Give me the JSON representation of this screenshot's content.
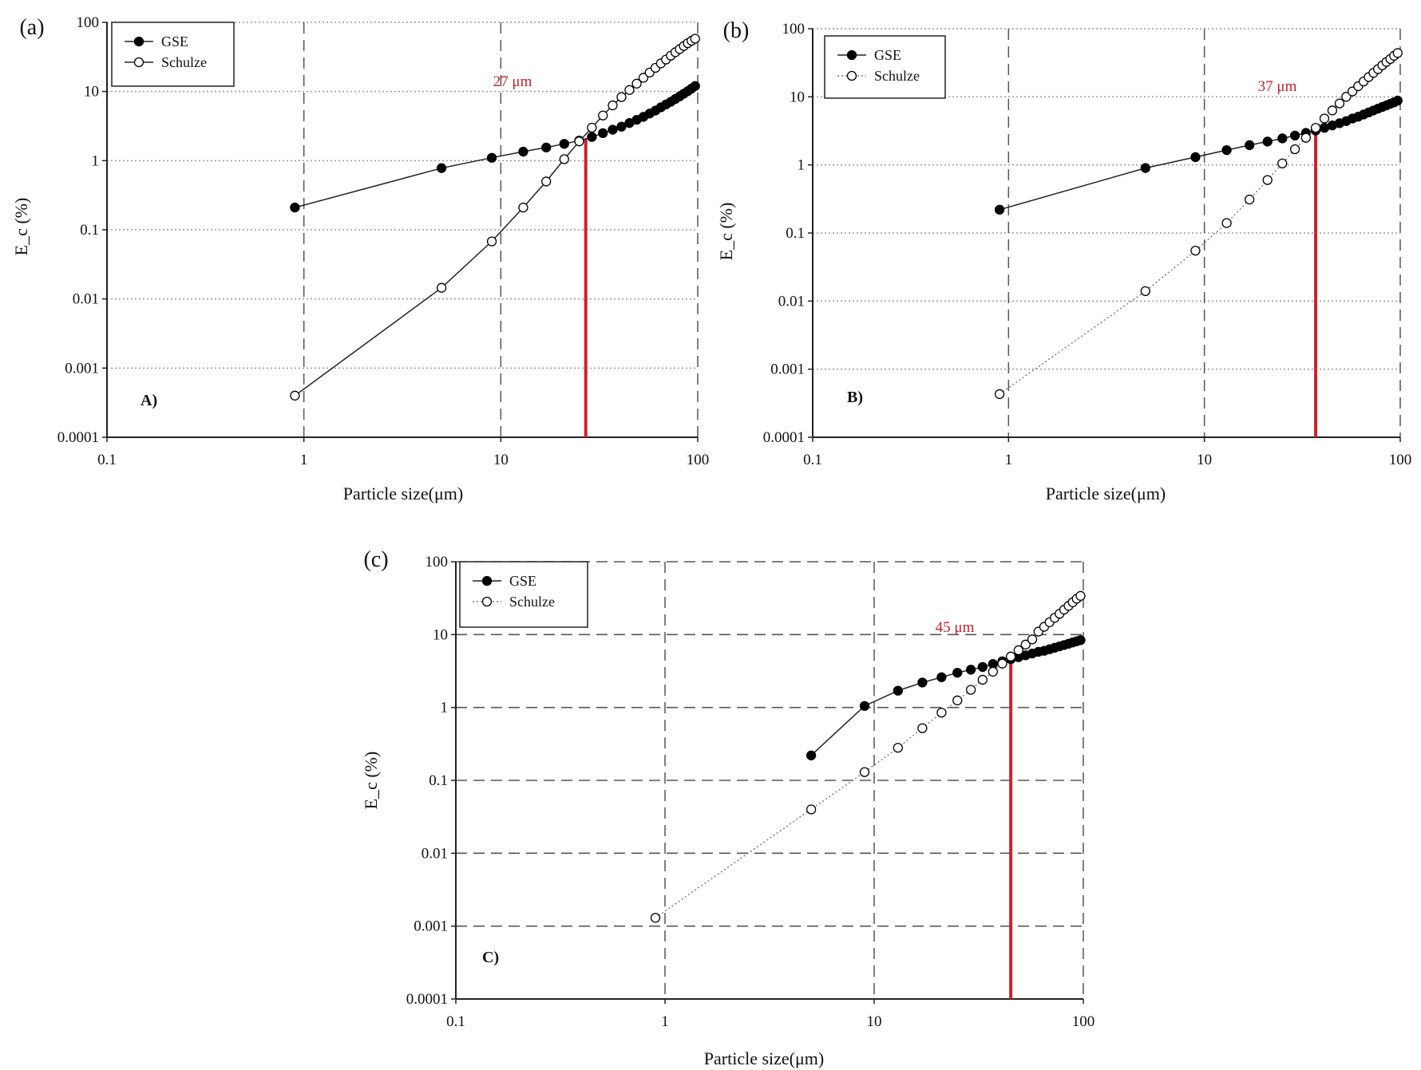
{
  "chart_data": [
    {
      "type": "line",
      "panel_label": "(a)",
      "inner_label": "A)",
      "xlabel": "Particle size(μm)",
      "ylabel": "E_c (%)",
      "xscale": "log",
      "yscale": "log",
      "xlim": [
        0.1,
        100
      ],
      "ylim": [
        0.0001,
        100
      ],
      "xticks": [
        "0.1",
        "1",
        "10",
        "100"
      ],
      "yticks": [
        "0.0001",
        "0.001",
        "0.01",
        "0.1",
        "1",
        "10",
        "100"
      ],
      "grid": {
        "horizontal": "dotted",
        "vertical": "dashed"
      },
      "legend": "top-left",
      "marker_line": {
        "x": 27,
        "label": "27 μm",
        "color": "#d0202a"
      },
      "series": [
        {
          "name": "GSE",
          "marker": "filled",
          "line": "solid",
          "x": [
            0.9,
            5,
            9,
            13,
            17,
            21,
            25,
            29,
            33,
            37,
            41,
            45,
            49,
            53,
            57,
            61,
            65,
            69,
            73,
            77,
            81,
            85,
            89,
            93,
            97
          ],
          "y": [
            0.21,
            0.78,
            1.1,
            1.35,
            1.55,
            1.75,
            1.95,
            2.2,
            2.5,
            2.8,
            3.1,
            3.5,
            3.9,
            4.3,
            4.8,
            5.3,
            5.9,
            6.5,
            7.1,
            7.8,
            8.5,
            9.3,
            10.1,
            11,
            12
          ]
        },
        {
          "name": "Schulze",
          "marker": "open",
          "line": "solid",
          "x": [
            0.9,
            5,
            9,
            13,
            17,
            21,
            25,
            29,
            33,
            37,
            41,
            45,
            49,
            53,
            57,
            61,
            65,
            69,
            73,
            77,
            81,
            85,
            89,
            93,
            97
          ],
          "y": [
            0.0004,
            0.0145,
            0.068,
            0.21,
            0.5,
            1.05,
            1.9,
            3,
            4.5,
            6.3,
            8.3,
            10.5,
            13,
            15.8,
            18.8,
            22,
            25.5,
            29,
            33,
            37,
            41,
            45.5,
            50,
            54,
            58
          ]
        }
      ]
    },
    {
      "type": "line",
      "panel_label": "(b)",
      "inner_label": "B)",
      "xlabel": "Particle size(μm)",
      "ylabel": "E_c (%)",
      "xscale": "log",
      "yscale": "log",
      "xlim": [
        0.1,
        100
      ],
      "ylim": [
        0.0001,
        100
      ],
      "xticks": [
        "0.1",
        "1",
        "10",
        "100"
      ],
      "yticks": [
        "0.0001",
        "0.001",
        "0.01",
        "0.1",
        "1",
        "10",
        "100"
      ],
      "grid": {
        "horizontal": "dotted",
        "vertical": "dashed"
      },
      "legend": "top-left",
      "marker_line": {
        "x": 37,
        "label": "37 μm",
        "color": "#d0202a"
      },
      "series": [
        {
          "name": "GSE",
          "marker": "filled",
          "line": "solid",
          "x": [
            0.9,
            5,
            9,
            13,
            17,
            21,
            25,
            29,
            33,
            37,
            41,
            45,
            49,
            53,
            57,
            61,
            65,
            69,
            73,
            77,
            81,
            85,
            89,
            93,
            97
          ],
          "y": [
            0.22,
            0.9,
            1.3,
            1.65,
            1.95,
            2.2,
            2.45,
            2.7,
            2.95,
            3.2,
            3.5,
            3.8,
            4.1,
            4.4,
            4.8,
            5.1,
            5.5,
            5.9,
            6.3,
            6.7,
            7.1,
            7.5,
            7.9,
            8.3,
            8.8
          ]
        },
        {
          "name": "Schulze",
          "marker": "open",
          "line": "dotted",
          "x": [
            0.9,
            5,
            9,
            13,
            17,
            21,
            25,
            29,
            33,
            37,
            41,
            45,
            49,
            53,
            57,
            61,
            65,
            69,
            73,
            77,
            81,
            85,
            89,
            93,
            97
          ],
          "y": [
            0.00043,
            0.014,
            0.055,
            0.14,
            0.31,
            0.6,
            1.05,
            1.7,
            2.5,
            3.5,
            4.8,
            6.3,
            8,
            10,
            12,
            14.3,
            16.8,
            19.5,
            22.5,
            25.5,
            29,
            32.5,
            36,
            40,
            44
          ]
        }
      ]
    },
    {
      "type": "line",
      "panel_label": "(c)",
      "inner_label": "C)",
      "xlabel": "Particle size(μm)",
      "ylabel": "E_c (%)",
      "xscale": "log",
      "yscale": "log",
      "xlim": [
        0.1,
        100
      ],
      "ylim": [
        0.0001,
        100
      ],
      "xticks": [
        "0.1",
        "1",
        "10",
        "100"
      ],
      "yticks": [
        "0.0001",
        "0.001",
        "0.01",
        "0.1",
        "1",
        "10",
        "100"
      ],
      "grid": {
        "horizontal": "dashed",
        "vertical": "dashed"
      },
      "legend": "top-left",
      "marker_line": {
        "x": 45,
        "label": "45 μm",
        "color": "#d0202a"
      },
      "series": [
        {
          "name": "GSE",
          "marker": "filled",
          "line": "solid",
          "x": [
            5,
            9,
            13,
            17,
            21,
            25,
            29,
            33,
            37,
            41,
            45,
            49,
            53,
            57,
            61,
            65,
            69,
            73,
            77,
            81,
            85,
            89,
            93,
            97
          ],
          "y": [
            0.22,
            1.05,
            1.7,
            2.2,
            2.6,
            3.0,
            3.3,
            3.6,
            3.95,
            4.3,
            4.6,
            4.9,
            5.2,
            5.5,
            5.8,
            6.0,
            6.3,
            6.6,
            6.9,
            7.2,
            7.5,
            7.8,
            8.1,
            8.4
          ]
        },
        {
          "name": "Schulze",
          "marker": "open",
          "line": "dotted",
          "x": [
            0.9,
            5,
            9,
            13,
            17,
            21,
            25,
            29,
            33,
            37,
            41,
            45,
            49,
            53,
            57,
            61,
            65,
            69,
            73,
            77,
            81,
            85,
            89,
            93,
            97
          ],
          "y": [
            0.0013,
            0.04,
            0.13,
            0.28,
            0.52,
            0.85,
            1.25,
            1.75,
            2.4,
            3.1,
            4.0,
            5.0,
            6.1,
            7.3,
            8.6,
            11,
            12.8,
            14.8,
            17,
            19.3,
            22,
            24.8,
            27.8,
            31,
            34
          ]
        }
      ]
    }
  ]
}
